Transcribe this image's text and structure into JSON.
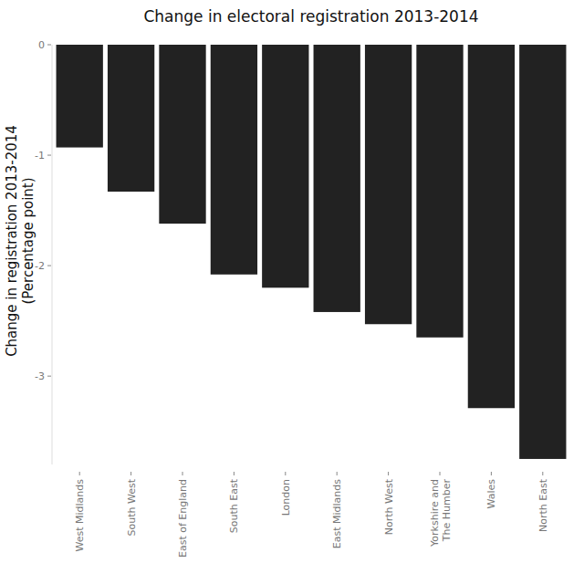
{
  "chart_data": {
    "type": "bar",
    "title": "Change in electoral registration 2013-2014",
    "ylabel": [
      "Change in registration 2013-2014",
      "(Percentage point)"
    ],
    "categories": [
      "West Midlands",
      "South West",
      "East of England",
      "South East",
      "London",
      "East Midlands",
      "North West",
      "Yorkshire and The Humber",
      "Wales",
      "North East"
    ],
    "values": [
      -0.93,
      -1.33,
      -1.62,
      -2.08,
      -2.2,
      -2.42,
      -2.53,
      -2.65,
      -3.29,
      -3.75
    ],
    "color": "#222222",
    "ylim": [
      -3.8,
      0
    ],
    "yticks": [
      -3,
      -2,
      -1,
      0
    ],
    "grid": false
  }
}
